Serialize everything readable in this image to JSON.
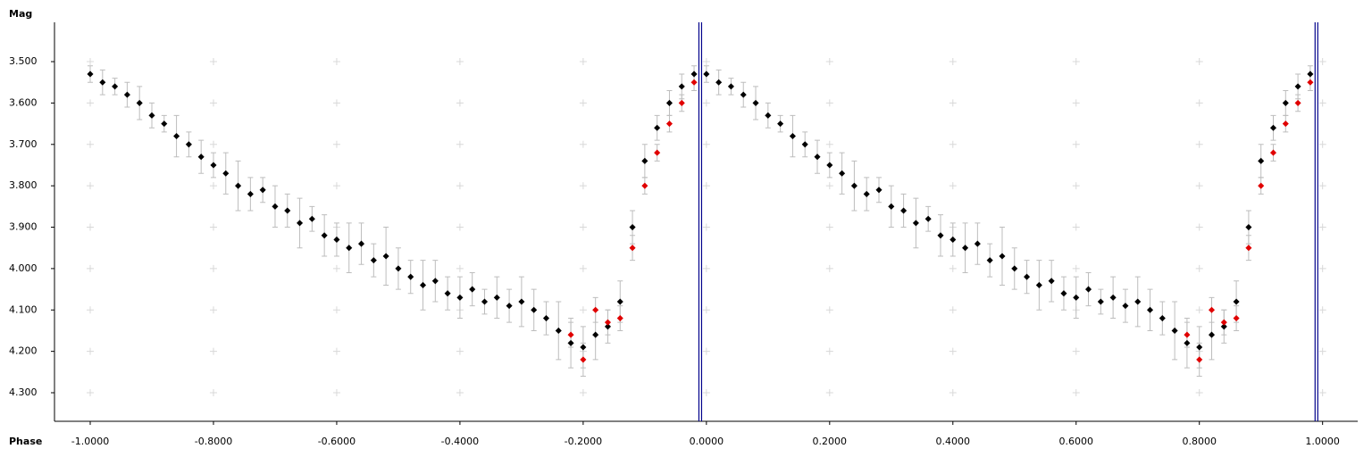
{
  "chart_data": {
    "type": "scatter",
    "y_label": "Mag",
    "x_label": "Phase",
    "xlim": [
      -1.058,
      1.057
    ],
    "ylim": [
      3.405,
      4.369
    ],
    "y_inverted": true,
    "grid": "crosses",
    "xticks": [
      {
        "value": -1.0,
        "label": "-1.0000"
      },
      {
        "value": -0.8,
        "label": "-0.8000"
      },
      {
        "value": -0.6,
        "label": "-0.6000"
      },
      {
        "value": -0.4,
        "label": "-0.4000"
      },
      {
        "value": -0.2,
        "label": "-0.2000"
      },
      {
        "value": 0,
        "label": "0.0000"
      },
      {
        "value": 0.2,
        "label": "0.2000"
      },
      {
        "value": 0.4,
        "label": "0.4000"
      },
      {
        "value": 0.6,
        "label": "0.6000"
      },
      {
        "value": 0.8,
        "label": "0.8000"
      },
      {
        "value": 1.0,
        "label": "1.0000"
      }
    ],
    "yticks": [
      {
        "value": 3.5,
        "label": "3.500"
      },
      {
        "value": 3.6,
        "label": "3.600"
      },
      {
        "value": 3.7,
        "label": "3.700"
      },
      {
        "value": 3.8,
        "label": "3.800"
      },
      {
        "value": 3.9,
        "label": "3.900"
      },
      {
        "value": 4.0,
        "label": "4.000"
      },
      {
        "value": 4.1,
        "label": "4.100"
      },
      {
        "value": 4.2,
        "label": "4.200"
      },
      {
        "value": 4.3,
        "label": "4.300"
      }
    ],
    "vlines": [
      -0.01,
      0.99
    ],
    "vline_color": "#00008b",
    "error_color": "#bdbdbd",
    "series": [
      {
        "color": "#000000",
        "x": [
          -1.0,
          -0.98,
          -0.96,
          -0.94,
          -0.92,
          -0.9,
          -0.88,
          -0.86,
          -0.84,
          -0.82,
          -0.8,
          -0.78,
          -0.76,
          -0.74,
          -0.72,
          -0.7,
          -0.68,
          -0.66,
          -0.64,
          -0.62,
          -0.6,
          -0.58,
          -0.56,
          -0.54,
          -0.52,
          -0.5,
          -0.48,
          -0.46,
          -0.44,
          -0.42,
          -0.4,
          -0.38,
          -0.36,
          -0.34,
          -0.32,
          -0.3,
          -0.28,
          -0.26,
          -0.24,
          -0.22,
          -0.2,
          -0.18,
          -0.16,
          -0.14,
          -0.12,
          -0.1,
          -0.08,
          -0.06,
          -0.04,
          -0.02,
          0.0,
          0.02,
          0.04,
          0.06,
          0.08,
          0.1,
          0.12,
          0.14,
          0.16,
          0.18,
          0.2,
          0.22,
          0.24,
          0.26,
          0.28,
          0.3,
          0.32,
          0.34,
          0.36,
          0.38,
          0.4,
          0.42,
          0.44,
          0.46,
          0.48,
          0.5,
          0.52,
          0.54,
          0.56,
          0.58,
          0.6,
          0.62,
          0.64,
          0.66,
          0.68,
          0.7,
          0.72,
          0.74,
          0.76,
          0.78,
          0.8,
          0.82,
          0.84,
          0.86,
          0.88,
          0.9,
          0.92,
          0.94,
          0.96,
          0.98
        ],
        "values": [
          3.53,
          3.55,
          3.56,
          3.58,
          3.6,
          3.63,
          3.65,
          3.68,
          3.7,
          3.73,
          3.75,
          3.77,
          3.8,
          3.82,
          3.81,
          3.85,
          3.86,
          3.89,
          3.88,
          3.92,
          3.93,
          3.95,
          3.94,
          3.98,
          3.97,
          4.0,
          4.02,
          4.04,
          4.03,
          4.06,
          4.07,
          4.05,
          4.08,
          4.07,
          4.09,
          4.08,
          4.1,
          4.12,
          4.15,
          4.18,
          4.19,
          4.16,
          4.14,
          4.08,
          3.9,
          3.74,
          3.66,
          3.6,
          3.56,
          3.53,
          3.53,
          3.55,
          3.56,
          3.58,
          3.6,
          3.63,
          3.65,
          3.68,
          3.7,
          3.73,
          3.75,
          3.77,
          3.8,
          3.82,
          3.81,
          3.85,
          3.86,
          3.89,
          3.88,
          3.92,
          3.93,
          3.95,
          3.94,
          3.98,
          3.97,
          4.0,
          4.02,
          4.04,
          4.03,
          4.06,
          4.07,
          4.05,
          4.08,
          4.07,
          4.09,
          4.08,
          4.1,
          4.12,
          4.15,
          4.18,
          4.19,
          4.16,
          4.14,
          4.08,
          3.9,
          3.74,
          3.66,
          3.6,
          3.56,
          3.53
        ],
        "errors": [
          0.02,
          0.03,
          0.02,
          0.03,
          0.04,
          0.03,
          0.02,
          0.05,
          0.03,
          0.04,
          0.03,
          0.05,
          0.06,
          0.04,
          0.03,
          0.05,
          0.04,
          0.06,
          0.03,
          0.05,
          0.04,
          0.06,
          0.05,
          0.04,
          0.07,
          0.05,
          0.04,
          0.06,
          0.05,
          0.04,
          0.05,
          0.04,
          0.03,
          0.05,
          0.04,
          0.06,
          0.05,
          0.04,
          0.07,
          0.06,
          0.05,
          0.06,
          0.04,
          0.05,
          0.04,
          0.04,
          0.03,
          0.03,
          0.03,
          0.02,
          0.02,
          0.03,
          0.02,
          0.03,
          0.04,
          0.03,
          0.02,
          0.05,
          0.03,
          0.04,
          0.03,
          0.05,
          0.06,
          0.04,
          0.03,
          0.05,
          0.04,
          0.06,
          0.03,
          0.05,
          0.04,
          0.06,
          0.05,
          0.04,
          0.07,
          0.05,
          0.04,
          0.06,
          0.05,
          0.04,
          0.05,
          0.04,
          0.03,
          0.05,
          0.04,
          0.06,
          0.05,
          0.04,
          0.07,
          0.06,
          0.05,
          0.06,
          0.04,
          0.05,
          0.04,
          0.04,
          0.03,
          0.03,
          0.03,
          0.02
        ]
      },
      {
        "color": "#e00000",
        "x": [
          -0.22,
          -0.2,
          -0.18,
          -0.16,
          -0.14,
          -0.12,
          -0.1,
          -0.08,
          -0.06,
          -0.04,
          -0.02,
          0.78,
          0.8,
          0.82,
          0.84,
          0.86,
          0.88,
          0.9,
          0.92,
          0.94,
          0.96,
          0.98
        ],
        "values": [
          4.16,
          4.22,
          4.1,
          4.13,
          4.12,
          3.95,
          3.8,
          3.72,
          3.65,
          3.6,
          3.55,
          4.16,
          4.22,
          4.1,
          4.13,
          4.12,
          3.95,
          3.8,
          3.72,
          3.65,
          3.6,
          3.55
        ],
        "errors": [
          0.03,
          0.04,
          0.03,
          0.03,
          0.03,
          0.03,
          0.02,
          0.02,
          0.02,
          0.02,
          0.02,
          0.03,
          0.04,
          0.03,
          0.03,
          0.03,
          0.03,
          0.02,
          0.02,
          0.02,
          0.02,
          0.02
        ]
      }
    ]
  }
}
